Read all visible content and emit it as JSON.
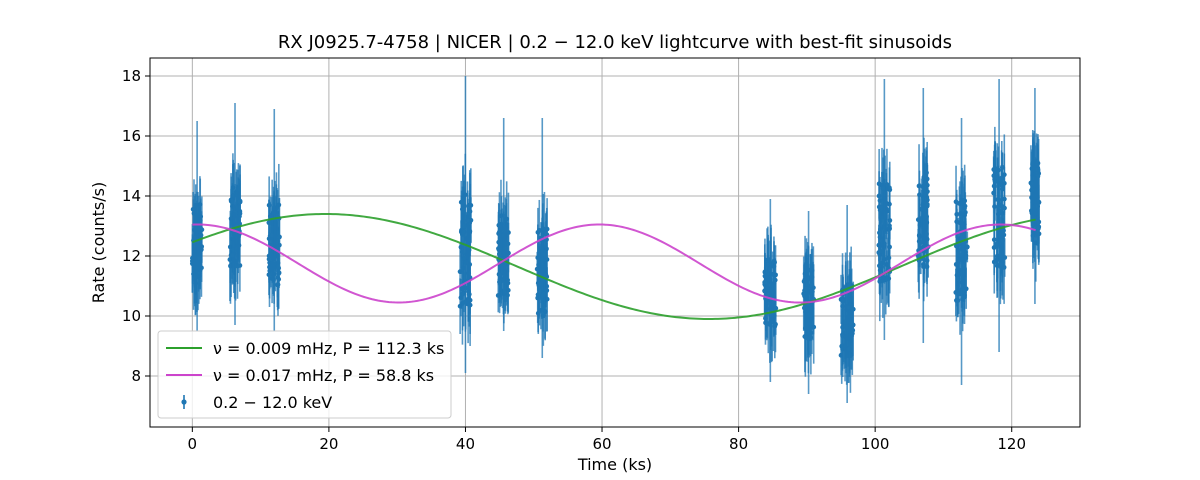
{
  "chart_data": {
    "type": "line",
    "title": "RX J0925.7-4758 | NICER | 0.2 − 12.0 keV lightcurve with best-fit sinusoids",
    "xlabel": "Time (ks)",
    "ylabel": "Rate (counts/s)",
    "xlim": [
      -6.2,
      130
    ],
    "ylim": [
      6.3,
      18.6
    ],
    "x_ticks": [
      0,
      20,
      40,
      60,
      80,
      100,
      120
    ],
    "y_ticks": [
      8,
      10,
      12,
      14,
      16,
      18
    ],
    "grid": true,
    "legend_placement": "bottom-left",
    "series": [
      {
        "name": "ν = 0.009 mHz, P = 112.3 ks",
        "kind": "sinusoid",
        "color": "#2ca02c",
        "mean": 11.65,
        "amplitude": 1.75,
        "period_ks": 112.3,
        "peak_time_ks": 19.5,
        "x_range": [
          0,
          123.5
        ]
      },
      {
        "name": "ν = 0.017 mHz, P = 58.8 ks",
        "kind": "sinusoid",
        "color": "#cc44cc",
        "mean": 11.75,
        "amplitude": 1.3,
        "period_ks": 58.8,
        "peak_time_ks": 0.8,
        "x_range": [
          0,
          123.5
        ]
      },
      {
        "name": "0.2 − 12.0 keV",
        "kind": "errorbar",
        "color": "#1f77b4",
        "segments": [
          {
            "t0": 0,
            "t1": 1.4,
            "mean": 12.4,
            "low": 9.5,
            "high": 16.5
          },
          {
            "t0": 5.5,
            "t1": 7.0,
            "mean": 13.0,
            "low": 9.7,
            "high": 17.1
          },
          {
            "t0": 11.2,
            "t1": 12.8,
            "mean": 12.4,
            "low": 9.5,
            "high": 16.9
          },
          {
            "t0": 39.2,
            "t1": 40.8,
            "mean": 12.2,
            "low": 8.1,
            "high": 18.0
          },
          {
            "t0": 44.8,
            "t1": 46.4,
            "mean": 12.0,
            "low": 9.5,
            "high": 16.6
          },
          {
            "t0": 50.5,
            "t1": 52.0,
            "mean": 11.5,
            "low": 8.6,
            "high": 16.6
          },
          {
            "t0": 83.8,
            "t1": 85.5,
            "mean": 10.8,
            "low": 7.8,
            "high": 13.9
          },
          {
            "t0": 89.5,
            "t1": 91.0,
            "mean": 10.4,
            "low": 7.4,
            "high": 13.5
          },
          {
            "t0": 95.0,
            "t1": 96.8,
            "mean": 9.9,
            "low": 7.1,
            "high": 13.7
          },
          {
            "t0": 100.5,
            "t1": 102.2,
            "mean": 12.8,
            "low": 9.2,
            "high": 17.9
          },
          {
            "t0": 106.3,
            "t1": 107.8,
            "mean": 13.2,
            "low": 9.1,
            "high": 17.6
          },
          {
            "t0": 111.8,
            "t1": 113.5,
            "mean": 12.2,
            "low": 7.7,
            "high": 16.6
          },
          {
            "t0": 117.3,
            "t1": 119.0,
            "mean": 13.3,
            "low": 8.8,
            "high": 17.9
          },
          {
            "t0": 122.8,
            "t1": 124.0,
            "mean": 13.8,
            "low": 10.4,
            "high": 17.6
          }
        ]
      }
    ]
  }
}
